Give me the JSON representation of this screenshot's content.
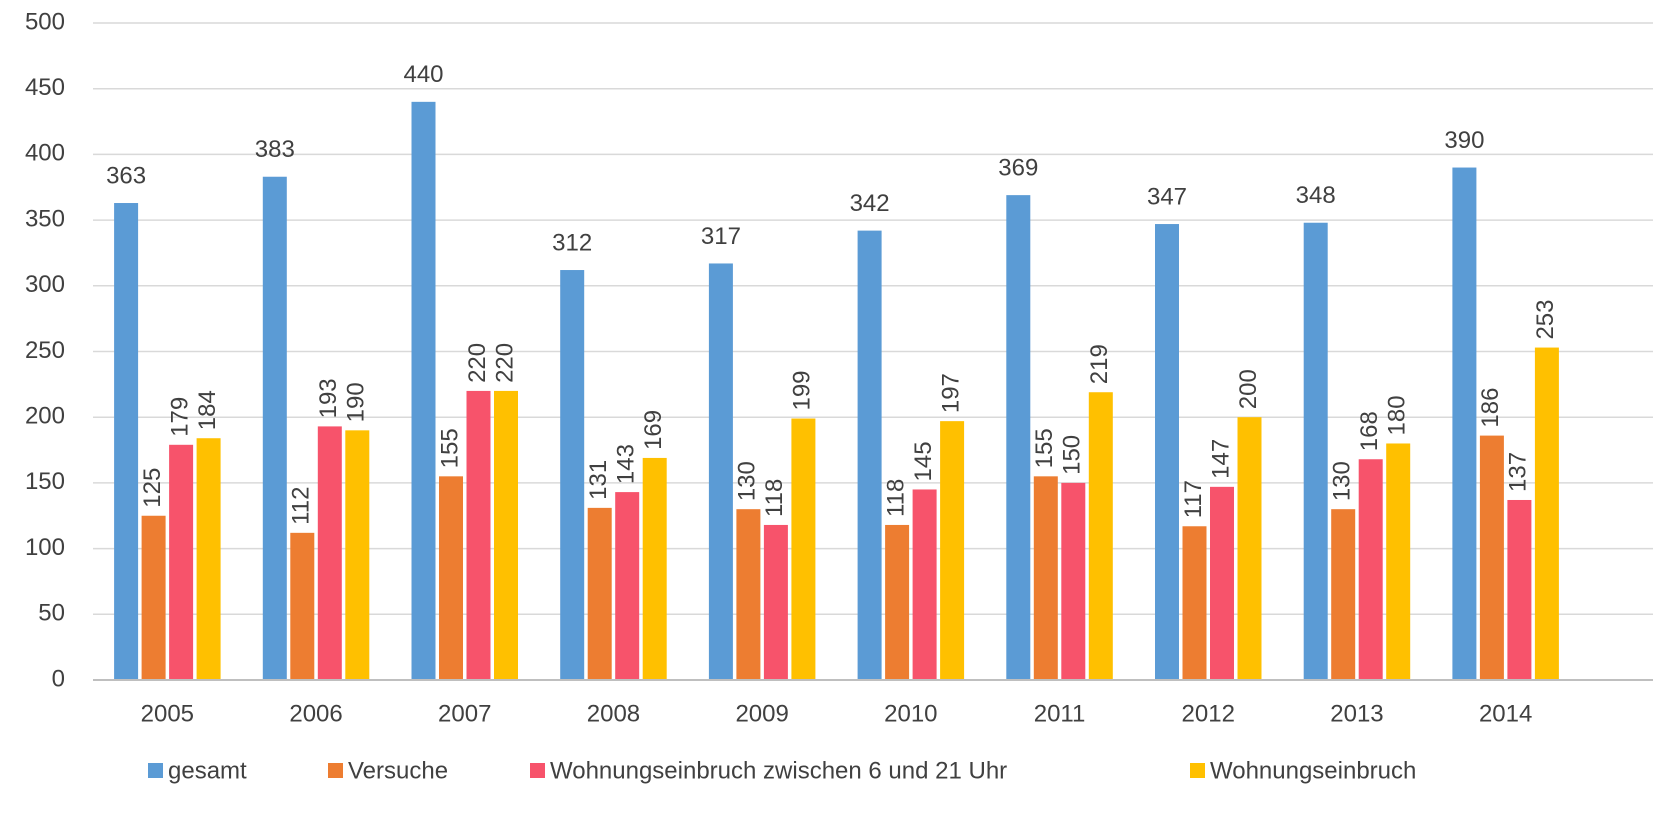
{
  "chart_data": {
    "type": "bar",
    "categories": [
      "2005",
      "2006",
      "2007",
      "2008",
      "2009",
      "2010",
      "2011",
      "2012",
      "2013",
      "2014"
    ],
    "series": [
      {
        "name": "gesamt",
        "color": "#5b9bd5",
        "values": [
          363,
          383,
          440,
          312,
          317,
          342,
          369,
          347,
          348,
          390
        ]
      },
      {
        "name": "Versuche",
        "color": "#ed7d31",
        "values": [
          125,
          112,
          155,
          131,
          130,
          118,
          155,
          117,
          130,
          186
        ]
      },
      {
        "name": "Wohnungseinbruch zwischen 6 und 21 Uhr",
        "color": "#f7536b",
        "values": [
          179,
          193,
          220,
          143,
          118,
          145,
          150,
          147,
          168,
          137
        ]
      },
      {
        "name": "Wohnungseinbruch",
        "color": "#ffc000",
        "values": [
          184,
          190,
          220,
          169,
          199,
          197,
          219,
          200,
          180,
          253
        ]
      }
    ],
    "ylim": [
      0,
      500
    ],
    "yticks": [
      0,
      50,
      100,
      150,
      200,
      250,
      300,
      350,
      400,
      450,
      500
    ],
    "grid": true,
    "legend": "bottom"
  }
}
